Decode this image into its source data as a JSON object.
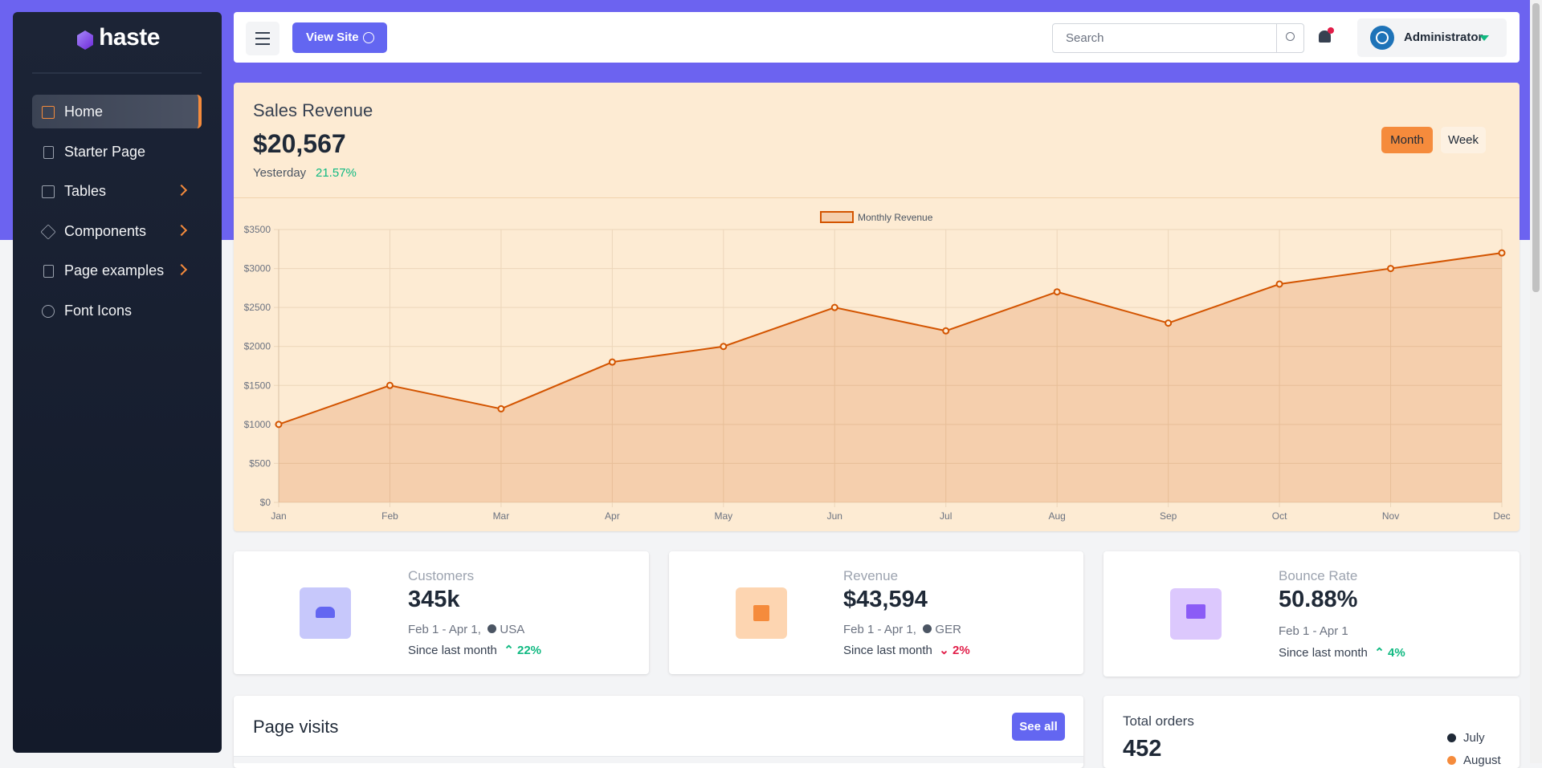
{
  "sidebar": {
    "brand": "haste",
    "menu": [
      "Home",
      "Starter Page",
      "Tables",
      "Components",
      "Page examples",
      "Font Icons"
    ]
  },
  "header": {
    "button": "View Site",
    "search_placeholder": "Search",
    "user": "Administrator"
  },
  "sales": {
    "title": "Sales Revenue",
    "amount": "$20,567",
    "period": "Yesterday",
    "change": "21.57%",
    "tabs": [
      "Month",
      "Week"
    ]
  },
  "chart_data": {
    "type": "line",
    "categories": [
      "Jan",
      "Feb",
      "Mar",
      "Apr",
      "May",
      "Jun",
      "Jul",
      "Aug",
      "Sep",
      "Oct",
      "Nov",
      "Dec"
    ],
    "series": [
      {
        "name": "Monthly Revenue",
        "color": "#d35400",
        "values": [
          1000,
          1500,
          1200,
          1800,
          2000,
          2500,
          2200,
          2700,
          2300,
          2800,
          3000,
          3200
        ]
      }
    ],
    "ylim": [
      0,
      3500
    ],
    "yticks": [
      {
        "value": 0,
        "label": "$0"
      },
      {
        "value": 500,
        "label": "$500"
      },
      {
        "value": 1000,
        "label": "$1000"
      },
      {
        "value": 1500,
        "label": "$1500"
      },
      {
        "value": 2000,
        "label": "$2000"
      },
      {
        "value": 2500,
        "label": "$2500"
      },
      {
        "value": 3000,
        "label": "$3000"
      },
      {
        "value": 3500,
        "label": "$3500"
      }
    ],
    "grid": true,
    "legend": "top"
  },
  "stats": [
    {
      "title": "Customers",
      "value": "345k",
      "date": "Feb 1 - Apr 1,",
      "region": "USA",
      "since": "Since last month",
      "change": "22%"
    },
    {
      "title": "Revenue",
      "value": "$43,594",
      "date": "Feb 1 - Apr 1,",
      "region": "GER",
      "since": "Since last month",
      "change": "2%"
    },
    {
      "title": "Bounce Rate",
      "value": "50.88%",
      "date": "Feb 1 - Apr 1",
      "since": "Since last month",
      "change": "4%"
    }
  ],
  "visits": {
    "title": "Page visits",
    "button": "See all"
  },
  "orders": {
    "title": "Total orders",
    "value": "452",
    "legend": [
      "July",
      "August"
    ]
  }
}
